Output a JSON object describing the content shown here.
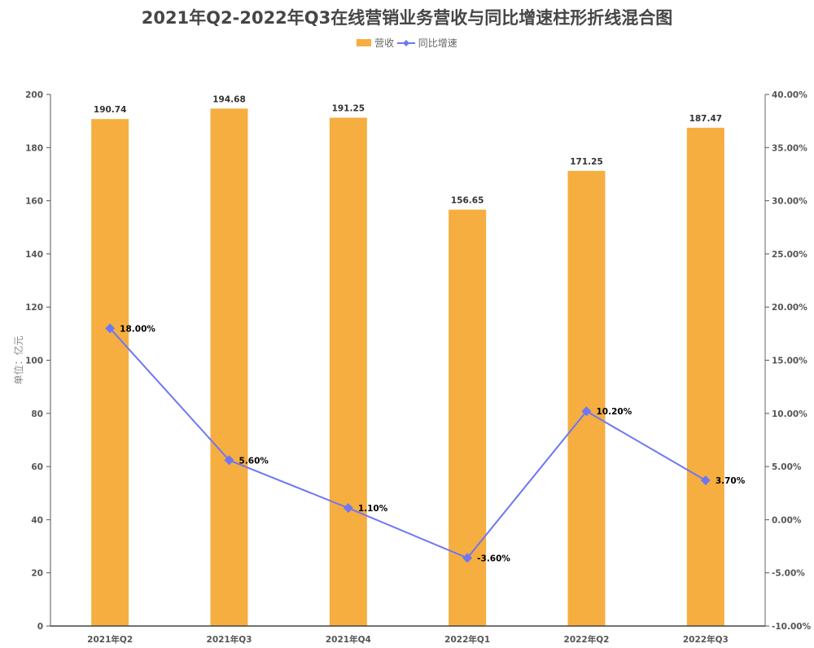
{
  "title": "2021年Q2-2022年Q3在线营销业务营收与同比增速柱形折线混合图",
  "legend": [
    {
      "label": "营收",
      "color": "#F6AE40",
      "type": "bar"
    },
    {
      "label": "同比增速",
      "color": "#6E77F2",
      "type": "line"
    }
  ],
  "yaxis_left_label": "单位：亿元",
  "chart_data": {
    "type": "bar+line",
    "title": "2021年Q2-2022年Q3在线营销业务营收与同比增速柱形折线混合图",
    "categories": [
      "2021年Q2",
      "2021年Q3",
      "2021年Q4",
      "2022年Q1",
      "2022年Q2",
      "2022年Q3"
    ],
    "series": [
      {
        "name": "营收",
        "type": "bar",
        "axis": "left",
        "values": [
          190.74,
          194.68,
          191.25,
          156.65,
          171.25,
          187.47
        ],
        "labels": [
          "190.74",
          "194.68",
          "191.25",
          "156.65",
          "171.25",
          "187.47"
        ]
      },
      {
        "name": "同比增速",
        "type": "line",
        "axis": "right",
        "values": [
          18.0,
          5.6,
          1.1,
          -3.6,
          10.2,
          3.7
        ],
        "labels": [
          "18.00%",
          "5.60%",
          "1.10%",
          "-3.60%",
          "10.20%",
          "3.70%"
        ]
      }
    ],
    "ylabel": "单位：亿元",
    "ylim": [
      0,
      200
    ],
    "y_ticks": [
      "0",
      "20",
      "40",
      "60",
      "80",
      "100",
      "120",
      "140",
      "160",
      "180",
      "200"
    ],
    "y2lim": [
      -10,
      40
    ],
    "y2_ticks": [
      "-10.00%",
      "-5.00%",
      "0.00%",
      "5.00%",
      "10.00%",
      "15.00%",
      "20.00%",
      "25.00%",
      "30.00%",
      "35.00%",
      "40.00%"
    ],
    "grid": false,
    "legend_position": "top"
  }
}
